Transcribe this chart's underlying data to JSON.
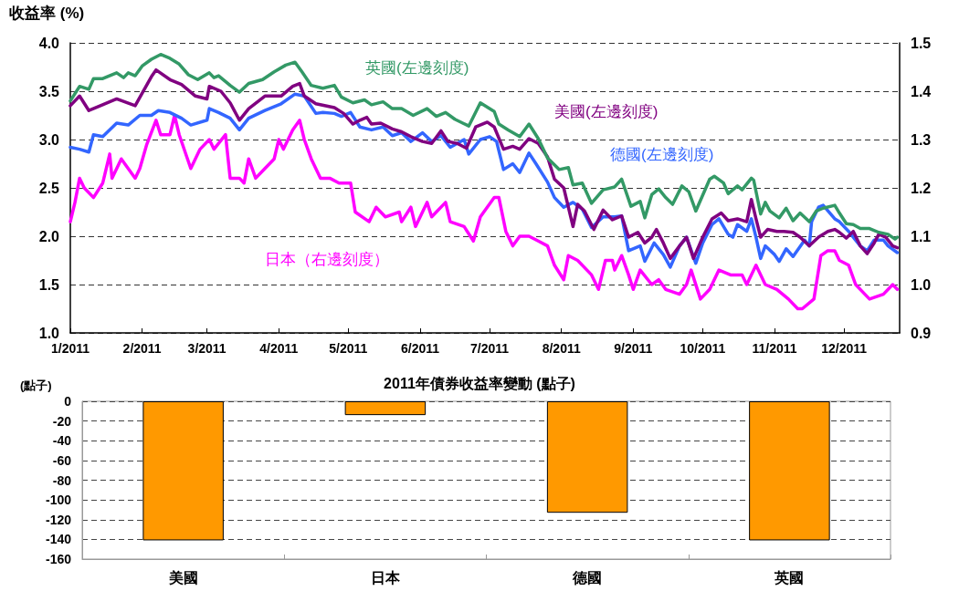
{
  "chart_data": [
    {
      "type": "line",
      "ylabel": "收益率 (%)",
      "grid": "y",
      "marker": "none",
      "line_style": "solid",
      "xlim": [
        "2011-01-01",
        "2011-12-25"
      ],
      "xticks": [
        {
          "value": "2011-01-01",
          "label": "1/2011"
        },
        {
          "value": "2011-02-01",
          "label": "2/2011"
        },
        {
          "value": "2011-03-01",
          "label": "3/2011"
        },
        {
          "value": "2011-04-01",
          "label": "4/2011"
        },
        {
          "value": "2011-05-01",
          "label": "5/2011"
        },
        {
          "value": "2011-06-01",
          "label": "6/2011"
        },
        {
          "value": "2011-07-01",
          "label": "7/2011"
        },
        {
          "value": "2011-08-01",
          "label": "8/2011"
        },
        {
          "value": "2011-09-01",
          "label": "9/2011"
        },
        {
          "value": "2011-10-01",
          "label": "10/2011"
        },
        {
          "value": "2011-11-01",
          "label": "11/2011"
        },
        {
          "value": "2011-12-01",
          "label": "12/2011"
        }
      ],
      "ylim": [
        1,
        4
      ],
      "yticks": [
        {
          "value": 1,
          "label": "1.0"
        },
        {
          "value": 1.5,
          "label": "1.5"
        },
        {
          "value": 2,
          "label": "2.0"
        },
        {
          "value": 2.5,
          "label": "2.5"
        },
        {
          "value": 3,
          "label": "3.0"
        },
        {
          "value": 3.5,
          "label": "3.5"
        },
        {
          "value": 4,
          "label": "4.0"
        }
      ],
      "y2lim": [
        0.9,
        1.5
      ],
      "y2ticks": [
        {
          "value": 0.9,
          "label": "0.9"
        },
        {
          "value": 1,
          "label": "1.0"
        },
        {
          "value": 1.1,
          "label": "1.1"
        },
        {
          "value": 1.2,
          "label": "1.2"
        },
        {
          "value": 1.3,
          "label": "1.3"
        },
        {
          "value": 1.4,
          "label": "1.4"
        },
        {
          "value": 1.5,
          "label": "1.5"
        }
      ],
      "series": [
        {
          "name": "英國(左邊刻度)",
          "color": "#339966",
          "x": [
            "2011-01-01",
            "2011-01-05",
            "2011-01-09",
            "2011-01-11",
            "2011-01-15",
            "2011-01-21",
            "2011-01-24",
            "2011-01-26",
            "2011-01-29",
            "2011-02-01",
            "2011-02-05",
            "2011-02-09",
            "2011-02-13",
            "2011-02-17",
            "2011-02-21",
            "2011-02-25",
            "2011-03-02",
            "2011-03-04",
            "2011-03-06",
            "2011-03-11",
            "2011-03-15",
            "2011-03-19",
            "2011-03-25",
            "2011-03-30",
            "2011-04-04",
            "2011-04-08",
            "2011-04-11",
            "2011-04-15",
            "2011-04-20",
            "2011-04-25",
            "2011-04-28",
            "2011-05-03",
            "2011-05-08",
            "2011-05-11",
            "2011-05-16",
            "2011-05-20",
            "2011-05-24",
            "2011-05-29",
            "2011-06-04",
            "2011-06-08",
            "2011-06-12",
            "2011-06-16",
            "2011-06-22",
            "2011-06-27",
            "2011-07-03",
            "2011-07-05",
            "2011-07-09",
            "2011-07-14",
            "2011-07-18",
            "2011-07-22",
            "2011-07-26",
            "2011-07-31",
            "2011-08-04",
            "2011-08-06",
            "2011-08-10",
            "2011-08-14",
            "2011-08-19",
            "2011-08-24",
            "2011-08-27",
            "2011-08-31",
            "2011-09-04",
            "2011-09-06",
            "2011-09-09",
            "2011-09-12",
            "2011-09-15",
            "2011-09-18",
            "2011-09-22",
            "2011-09-25",
            "2011-09-28",
            "2011-10-04",
            "2011-10-06",
            "2011-10-10",
            "2011-10-12",
            "2011-10-16",
            "2011-10-18",
            "2011-10-22",
            "2011-10-23",
            "2011-10-26",
            "2011-10-28",
            "2011-10-30",
            "2011-11-03",
            "2011-11-06",
            "2011-11-09",
            "2011-11-12",
            "2011-11-16",
            "2011-11-19",
            "2011-11-22",
            "2011-11-27",
            "2011-11-29",
            "2011-12-02",
            "2011-12-05",
            "2011-12-08",
            "2011-12-12",
            "2011-12-16",
            "2011-12-20",
            "2011-12-23",
            "2011-12-24"
          ],
          "values": [
            3.4,
            3.55,
            3.52,
            3.63,
            3.63,
            3.69,
            3.64,
            3.69,
            3.66,
            3.76,
            3.83,
            3.88,
            3.84,
            3.78,
            3.67,
            3.62,
            3.69,
            3.64,
            3.66,
            3.56,
            3.49,
            3.58,
            3.62,
            3.7,
            3.77,
            3.8,
            3.7,
            3.56,
            3.53,
            3.56,
            3.44,
            3.38,
            3.41,
            3.36,
            3.39,
            3.32,
            3.32,
            3.25,
            3.32,
            3.24,
            3.28,
            3.21,
            3.14,
            3.38,
            3.29,
            3.16,
            3.1,
            3.03,
            3.16,
            3.01,
            2.81,
            2.69,
            2.71,
            2.53,
            2.55,
            2.34,
            2.48,
            2.51,
            2.59,
            2.31,
            2.36,
            2.19,
            2.43,
            2.49,
            2.4,
            2.33,
            2.52,
            2.46,
            2.26,
            2.59,
            2.62,
            2.55,
            2.44,
            2.52,
            2.48,
            2.6,
            2.58,
            2.23,
            2.35,
            2.26,
            2.19,
            2.29,
            2.16,
            2.24,
            2.15,
            2.26,
            2.29,
            2.32,
            2.24,
            2.13,
            2.12,
            2.08,
            2.08,
            2.04,
            2.02,
            1.97,
            1.99
          ]
        },
        {
          "name": "美國(左邊刻度)",
          "color": "#800080",
          "x": [
            "2011-01-01",
            "2011-01-05",
            "2011-01-09",
            "2011-01-14",
            "2011-01-21",
            "2011-01-29",
            "2011-02-05",
            "2011-02-07",
            "2011-02-13",
            "2011-02-18",
            "2011-02-24",
            "2011-03-01",
            "2011-03-02",
            "2011-03-07",
            "2011-03-11",
            "2011-03-15",
            "2011-03-19",
            "2011-03-26",
            "2011-04-02",
            "2011-04-07",
            "2011-04-10",
            "2011-04-12",
            "2011-04-17",
            "2011-04-25",
            "2011-04-29",
            "2011-05-03",
            "2011-05-06",
            "2011-05-09",
            "2011-05-11",
            "2011-05-15",
            "2011-05-20",
            "2011-05-24",
            "2011-05-28",
            "2011-06-02",
            "2011-06-06",
            "2011-06-10",
            "2011-06-13",
            "2011-06-17",
            "2011-06-21",
            "2011-06-25",
            "2011-06-30",
            "2011-07-03",
            "2011-07-07",
            "2011-07-11",
            "2011-07-14",
            "2011-07-18",
            "2011-07-22",
            "2011-07-26",
            "2011-07-29",
            "2011-08-02",
            "2011-08-06",
            "2011-08-08",
            "2011-08-11",
            "2011-08-15",
            "2011-08-19",
            "2011-08-23",
            "2011-08-27",
            "2011-08-30",
            "2011-09-03",
            "2011-09-06",
            "2011-09-09",
            "2011-09-11",
            "2011-09-14",
            "2011-09-17",
            "2011-09-21",
            "2011-09-24",
            "2011-09-27",
            "2011-10-01",
            "2011-10-05",
            "2011-10-09",
            "2011-10-12",
            "2011-10-16",
            "2011-10-20",
            "2011-10-22",
            "2011-10-24",
            "2011-10-26",
            "2011-10-29",
            "2011-11-02",
            "2011-11-05",
            "2011-11-09",
            "2011-11-12",
            "2011-11-16",
            "2011-11-20",
            "2011-11-24",
            "2011-11-27",
            "2011-11-29",
            "2011-12-02",
            "2011-12-05",
            "2011-12-08",
            "2011-12-11",
            "2011-12-14",
            "2011-12-16",
            "2011-12-19",
            "2011-12-22",
            "2011-12-24"
          ],
          "values": [
            3.35,
            3.45,
            3.3,
            3.35,
            3.42,
            3.35,
            3.65,
            3.72,
            3.62,
            3.57,
            3.45,
            3.42,
            3.55,
            3.5,
            3.38,
            3.2,
            3.32,
            3.45,
            3.45,
            3.55,
            3.58,
            3.45,
            3.37,
            3.33,
            3.27,
            3.16,
            3.2,
            3.23,
            3.16,
            3.17,
            3.11,
            3.08,
            3.03,
            2.98,
            2.96,
            3.09,
            2.98,
            2.96,
            2.91,
            3.13,
            3.18,
            3.13,
            2.9,
            2.93,
            2.9,
            3.01,
            2.96,
            2.82,
            2.59,
            2.5,
            2.1,
            2.33,
            2.26,
            2.07,
            2.27,
            2.17,
            2.21,
            1.99,
            2.04,
            1.93,
            1.99,
            2.07,
            1.93,
            1.77,
            1.9,
            1.99,
            1.77,
            1.99,
            2.18,
            2.24,
            2.16,
            2.18,
            2.15,
            2.38,
            2.18,
            1.99,
            2.07,
            2.05,
            2.05,
            2.04,
            1.99,
            1.9,
            1.99,
            2.05,
            2.07,
            2.04,
            1.98,
            2.05,
            1.9,
            1.82,
            1.93,
            2.02,
            1.99,
            1.9,
            1.88
          ]
        },
        {
          "name": "德國(左邊刻度)",
          "color": "#3366ff",
          "x": [
            "2011-01-01",
            "2011-01-05",
            "2011-01-09",
            "2011-01-11",
            "2011-01-15",
            "2011-01-21",
            "2011-01-26",
            "2011-01-31",
            "2011-02-05",
            "2011-02-08",
            "2011-02-13",
            "2011-02-18",
            "2011-02-22",
            "2011-03-01",
            "2011-03-02",
            "2011-03-06",
            "2011-03-11",
            "2011-03-15",
            "2011-03-19",
            "2011-03-26",
            "2011-04-02",
            "2011-04-08",
            "2011-04-12",
            "2011-04-17",
            "2011-04-20",
            "2011-04-25",
            "2011-04-28",
            "2011-05-02",
            "2011-05-06",
            "2011-05-11",
            "2011-05-16",
            "2011-05-20",
            "2011-05-24",
            "2011-05-28",
            "2011-06-02",
            "2011-06-06",
            "2011-06-10",
            "2011-06-14",
            "2011-06-20",
            "2011-06-22",
            "2011-06-27",
            "2011-07-01",
            "2011-07-04",
            "2011-07-07",
            "2011-07-11",
            "2011-07-14",
            "2011-07-18",
            "2011-07-21",
            "2011-07-26",
            "2011-07-29",
            "2011-08-02",
            "2011-08-06",
            "2011-08-10",
            "2011-08-14",
            "2011-08-19",
            "2011-08-24",
            "2011-08-27",
            "2011-08-30",
            "2011-09-04",
            "2011-09-06",
            "2011-09-10",
            "2011-09-14",
            "2011-09-17",
            "2011-09-21",
            "2011-09-24",
            "2011-09-28",
            "2011-10-01",
            "2011-10-05",
            "2011-10-08",
            "2011-10-12",
            "2011-10-14",
            "2011-10-16",
            "2011-10-20",
            "2011-10-22",
            "2011-10-24",
            "2011-10-26",
            "2011-10-28",
            "2011-11-01",
            "2011-11-03",
            "2011-11-06",
            "2011-11-09",
            "2011-11-14",
            "2011-11-16",
            "2011-11-17",
            "2011-11-20",
            "2011-11-22",
            "2011-11-27",
            "2011-11-29",
            "2011-12-03",
            "2011-12-05",
            "2011-12-08",
            "2011-12-11",
            "2011-12-14",
            "2011-12-18",
            "2011-12-20",
            "2011-12-24"
          ],
          "values": [
            2.92,
            2.9,
            2.87,
            3.05,
            3.03,
            3.17,
            3.15,
            3.25,
            3.25,
            3.3,
            3.28,
            3.22,
            3.15,
            3.2,
            3.32,
            3.28,
            3.22,
            3.1,
            3.22,
            3.3,
            3.37,
            3.47,
            3.45,
            3.27,
            3.28,
            3.27,
            3.24,
            3.28,
            3.13,
            3.1,
            3.13,
            3.04,
            3.07,
            2.98,
            3.07,
            2.98,
            3.04,
            2.92,
            3.0,
            2.85,
            3.0,
            3.03,
            2.98,
            2.69,
            2.75,
            2.66,
            2.86,
            2.75,
            2.56,
            2.4,
            2.3,
            2.35,
            2.28,
            2.09,
            2.2,
            2.2,
            2.21,
            1.85,
            1.9,
            1.74,
            1.93,
            1.81,
            1.68,
            1.9,
            1.99,
            1.72,
            1.93,
            2.12,
            2.18,
            2.02,
            1.99,
            2.12,
            2.05,
            2.18,
            1.99,
            1.77,
            1.9,
            1.81,
            1.74,
            1.87,
            1.79,
            1.96,
            1.9,
            2.15,
            2.3,
            2.32,
            2.18,
            2.15,
            2.05,
            1.99,
            1.9,
            1.85,
            1.96,
            1.96,
            1.9,
            1.83
          ]
        },
        {
          "name": "日本（右邊刻度）",
          "color": "#ff00ff",
          "axis": "y2",
          "x": [
            "2011-01-01",
            "2011-01-03",
            "2011-01-05",
            "2011-01-07",
            "2011-01-11",
            "2011-01-15",
            "2011-01-18",
            "2011-01-19",
            "2011-01-23",
            "2011-01-29",
            "2011-01-31",
            "2011-02-03",
            "2011-02-07",
            "2011-02-09",
            "2011-02-13",
            "2011-02-15",
            "2011-02-17",
            "2011-02-22",
            "2011-02-26",
            "2011-03-02",
            "2011-03-04",
            "2011-03-09",
            "2011-03-11",
            "2011-03-15",
            "2011-03-17",
            "2011-03-19",
            "2011-03-22",
            "2011-03-26",
            "2011-03-30",
            "2011-04-01",
            "2011-04-03",
            "2011-04-07",
            "2011-04-10",
            "2011-04-12",
            "2011-04-15",
            "2011-04-19",
            "2011-04-23",
            "2011-04-27",
            "2011-05-02",
            "2011-05-04",
            "2011-05-10",
            "2011-05-13",
            "2011-05-17",
            "2011-05-23",
            "2011-05-24",
            "2011-05-28",
            "2011-05-30",
            "2011-06-04",
            "2011-06-06",
            "2011-06-12",
            "2011-06-14",
            "2011-06-20",
            "2011-06-24",
            "2011-06-27",
            "2011-07-03",
            "2011-07-05",
            "2011-07-08",
            "2011-07-11",
            "2011-07-14",
            "2011-07-18",
            "2011-07-22",
            "2011-07-26",
            "2011-07-29",
            "2011-08-02",
            "2011-08-04",
            "2011-08-08",
            "2011-08-14",
            "2011-08-17",
            "2011-08-20",
            "2011-08-23",
            "2011-08-24",
            "2011-08-27",
            "2011-08-30",
            "2011-09-01",
            "2011-09-04",
            "2011-09-09",
            "2011-09-12",
            "2011-09-15",
            "2011-09-21",
            "2011-09-24",
            "2011-09-26",
            "2011-09-30",
            "2011-10-04",
            "2011-10-08",
            "2011-10-13",
            "2011-10-18",
            "2011-10-20",
            "2011-10-24",
            "2011-10-28",
            "2011-11-02",
            "2011-11-07",
            "2011-11-11",
            "2011-11-13",
            "2011-11-18",
            "2011-11-21",
            "2011-11-24",
            "2011-11-27",
            "2011-11-29",
            "2011-12-03",
            "2011-12-06",
            "2011-12-10",
            "2011-12-12",
            "2011-12-18",
            "2011-12-22",
            "2011-12-24"
          ],
          "values": [
            1.13,
            1.17,
            1.22,
            1.2,
            1.18,
            1.21,
            1.27,
            1.22,
            1.26,
            1.22,
            1.24,
            1.29,
            1.34,
            1.31,
            1.31,
            1.35,
            1.31,
            1.24,
            1.28,
            1.3,
            1.28,
            1.31,
            1.22,
            1.22,
            1.21,
            1.26,
            1.22,
            1.24,
            1.26,
            1.3,
            1.28,
            1.32,
            1.34,
            1.3,
            1.26,
            1.22,
            1.22,
            1.21,
            1.21,
            1.15,
            1.13,
            1.16,
            1.14,
            1.15,
            1.13,
            1.16,
            1.12,
            1.17,
            1.14,
            1.17,
            1.13,
            1.12,
            1.09,
            1.14,
            1.18,
            1.18,
            1.11,
            1.08,
            1.1,
            1.1,
            1.09,
            1.08,
            1.04,
            1.01,
            1.06,
            1.05,
            1.02,
            0.99,
            1.05,
            1.05,
            1.03,
            1.06,
            1.02,
            0.99,
            1.03,
            1.0,
            1.01,
            0.99,
            0.98,
            1.0,
            1.03,
            0.97,
            0.99,
            1.03,
            1.02,
            1.02,
            1.0,
            1.04,
            1.0,
            0.99,
            0.97,
            0.95,
            0.95,
            0.97,
            1.06,
            1.07,
            1.07,
            1.05,
            1.04,
            1.0,
            0.98,
            0.97,
            0.98,
            1.0,
            0.99
          ]
        }
      ]
    },
    {
      "type": "bar",
      "title": "2011年債券收益率變動 (點子)",
      "ylabel": "(點子)",
      "grid": "y",
      "categories": [
        "美國",
        "日本",
        "德國",
        "英國"
      ],
      "values": [
        -141,
        -14,
        -113,
        -141
      ],
      "color": "#ff9900",
      "ylim": [
        -160,
        0
      ],
      "yticks": [
        -160,
        -140,
        -120,
        -100,
        -80,
        -60,
        -40,
        -20,
        0
      ]
    }
  ]
}
